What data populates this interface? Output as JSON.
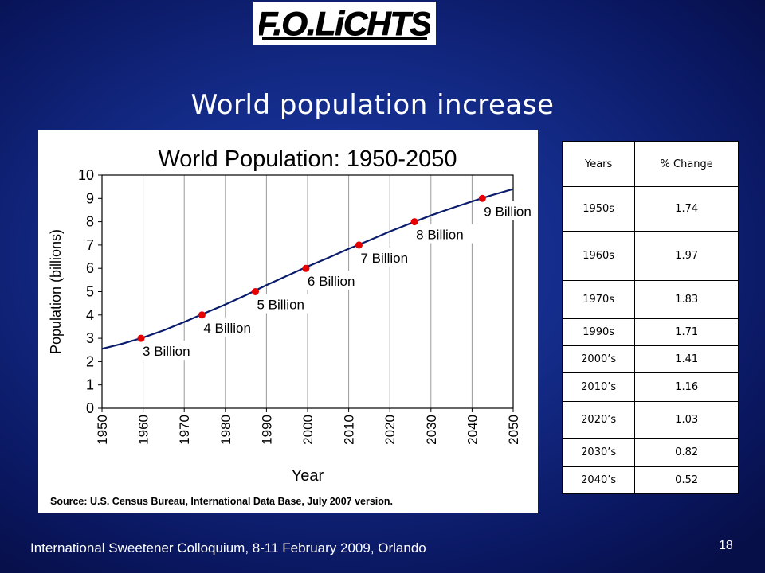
{
  "logo": {
    "text": "F.O.LiCHTS"
  },
  "slide": {
    "title": "World population increase"
  },
  "chart_data": {
    "type": "line",
    "title": "World Population: 1950-2050",
    "xlabel": "Year",
    "ylabel": "Population (billions)",
    "xlim": [
      1950,
      2050
    ],
    "ylim": [
      0,
      10
    ],
    "x_ticks": [
      "1950",
      "1960",
      "1970",
      "1980",
      "1990",
      "2000",
      "2010",
      "2020",
      "2030",
      "2040",
      "2050"
    ],
    "y_ticks": [
      "0",
      "1",
      "2",
      "3",
      "4",
      "5",
      "6",
      "7",
      "8",
      "9",
      "10"
    ],
    "grid": "vertical",
    "series": [
      {
        "x": [
          1950,
          1955,
          1960,
          1965,
          1970,
          1975,
          1980,
          1985,
          1990,
          2000,
          2005,
          2010,
          2015,
          2020,
          2025,
          2030,
          2035,
          2040,
          2045,
          2050
        ],
        "y": [
          2.55,
          2.77,
          3.03,
          3.34,
          3.7,
          4.08,
          4.45,
          4.85,
          5.28,
          6.08,
          6.45,
          6.84,
          7.2,
          7.58,
          7.93,
          8.27,
          8.58,
          8.87,
          9.15,
          9.4
        ]
      }
    ],
    "milestones": [
      {
        "x": 1959.5,
        "y": 3,
        "label": "3 Billion"
      },
      {
        "x": 1974.3,
        "y": 4,
        "label": "4 Billion"
      },
      {
        "x": 1987.3,
        "y": 5,
        "label": "5 Billion"
      },
      {
        "x": 1999.6,
        "y": 6,
        "label": "6 Billion"
      },
      {
        "x": 2012.5,
        "y": 7,
        "label": "7 Billion"
      },
      {
        "x": 2026,
        "y": 8,
        "label": "8 Billion"
      },
      {
        "x": 2042.5,
        "y": 9,
        "label": "9 Billion"
      }
    ],
    "source": "Source: U.S. Census Bureau, International Data Base, July 2007 version.",
    "line_color": "#0a1c6b",
    "marker_color": "#e60000"
  },
  "table": {
    "headers": [
      "Years",
      "% Change"
    ],
    "rows": [
      [
        "1950s",
        "1.74"
      ],
      [
        "1960s",
        "1.97"
      ],
      [
        "1970s",
        "1.83"
      ],
      [
        "1990s",
        "1.71"
      ],
      [
        "2000’s",
        "1.41"
      ],
      [
        "2010’s",
        "1.16"
      ],
      [
        "2020’s",
        "1.03"
      ],
      [
        "2030’s",
        "0.82"
      ],
      [
        "2040’s",
        "0.52"
      ]
    ]
  },
  "footer": {
    "text": "International Sweetener Colloquium, 8-11 February 2009, Orlando",
    "page_number": "18"
  }
}
